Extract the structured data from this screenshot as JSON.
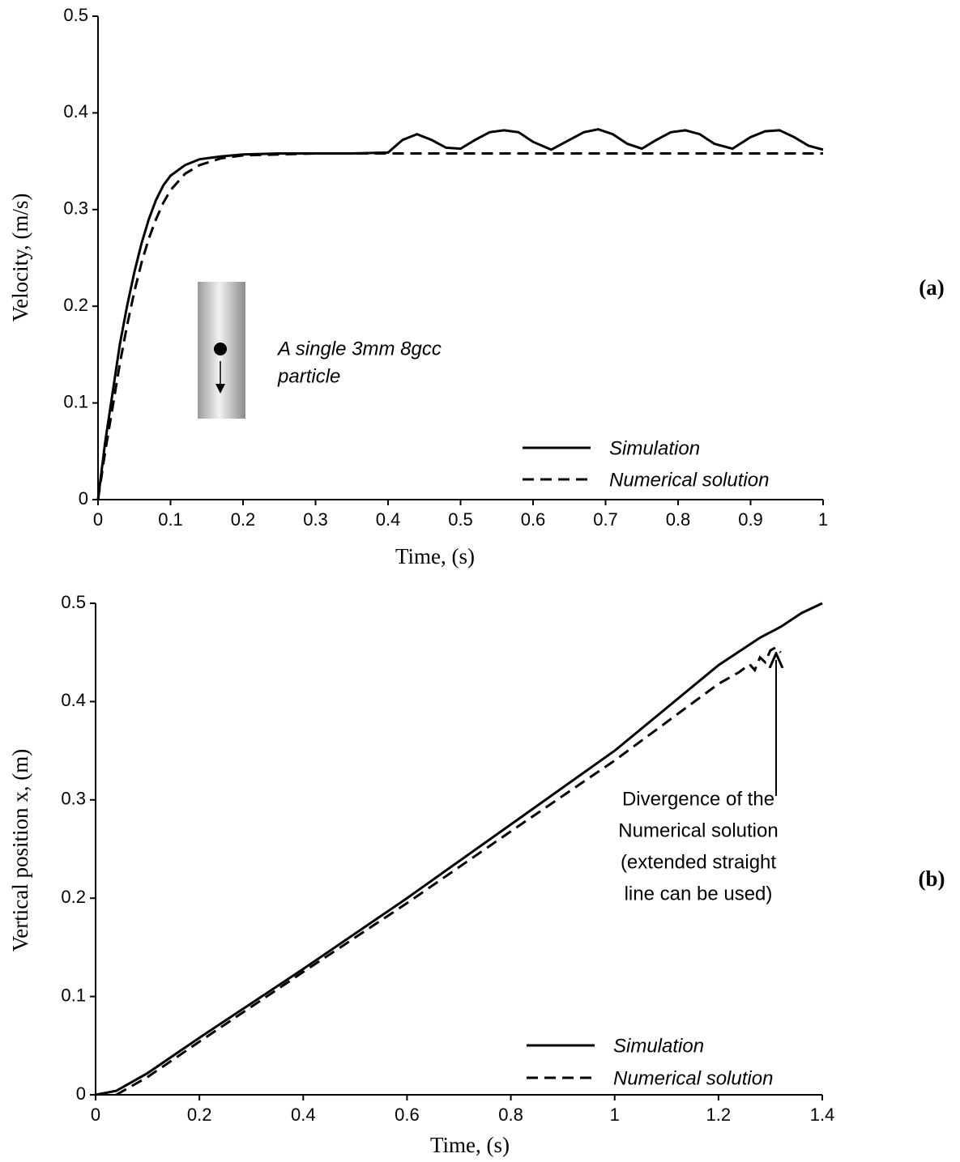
{
  "chart_data": [
    {
      "type": "line",
      "panel_label": "(a)",
      "x_label": "Time, (s)",
      "y_label": "Velocity, (m/s)",
      "xlim": [
        0,
        1
      ],
      "ylim": [
        0,
        0.5
      ],
      "xticks": [
        0,
        0.1,
        0.2,
        0.3,
        0.4,
        0.5,
        0.6,
        0.7,
        0.8,
        0.9,
        1
      ],
      "yticks": [
        0,
        0.1,
        0.2,
        0.3,
        0.4,
        0.5
      ],
      "legend": "lower right",
      "annotation": [
        "A single 3mm 8gcc",
        "particle"
      ],
      "series": [
        {
          "name": "Simulation",
          "color": "#000000",
          "dashed": false,
          "x": [
            0,
            0.01,
            0.02,
            0.03,
            0.04,
            0.05,
            0.06,
            0.07,
            0.08,
            0.09,
            0.1,
            0.12,
            0.14,
            0.17,
            0.2,
            0.25,
            0.3,
            0.35,
            0.4,
            0.42,
            0.44,
            0.46,
            0.48,
            0.5,
            0.52,
            0.54,
            0.56,
            0.58,
            0.6,
            0.625,
            0.65,
            0.67,
            0.69,
            0.71,
            0.73,
            0.75,
            0.77,
            0.79,
            0.81,
            0.83,
            0.85,
            0.875,
            0.9,
            0.92,
            0.94,
            0.96,
            0.98,
            1
          ],
          "values": [
            0,
            0.06,
            0.11,
            0.16,
            0.2,
            0.235,
            0.265,
            0.29,
            0.31,
            0.325,
            0.335,
            0.346,
            0.352,
            0.355,
            0.357,
            0.358,
            0.358,
            0.358,
            0.359,
            0.372,
            0.378,
            0.372,
            0.364,
            0.363,
            0.372,
            0.38,
            0.382,
            0.38,
            0.37,
            0.362,
            0.372,
            0.38,
            0.383,
            0.378,
            0.368,
            0.363,
            0.372,
            0.38,
            0.382,
            0.378,
            0.368,
            0.363,
            0.375,
            0.381,
            0.382,
            0.375,
            0.366,
            0.362
          ]
        },
        {
          "name": "Numerical solution",
          "color": "#000000",
          "dashed": true,
          "x": [
            0,
            0.01,
            0.02,
            0.03,
            0.04,
            0.05,
            0.06,
            0.07,
            0.08,
            0.09,
            0.1,
            0.12,
            0.14,
            0.17,
            0.2,
            0.3,
            1
          ],
          "values": [
            0,
            0.05,
            0.095,
            0.14,
            0.18,
            0.215,
            0.245,
            0.27,
            0.29,
            0.307,
            0.32,
            0.337,
            0.346,
            0.353,
            0.356,
            0.358,
            0.358
          ]
        }
      ]
    },
    {
      "type": "line",
      "panel_label": "(b)",
      "x_label": "Time, (s)",
      "y_label": "Vertical position x, (m)",
      "xlim": [
        0,
        1.4
      ],
      "ylim": [
        0,
        0.5
      ],
      "xticks": [
        0,
        0.2,
        0.4,
        0.6,
        0.8,
        1,
        1.2,
        1.4
      ],
      "yticks": [
        0,
        0.1,
        0.2,
        0.3,
        0.4,
        0.5
      ],
      "legend": "lower right",
      "annotation": [
        "Divergence of the",
        "Numerical solution",
        "(extended straight",
        "line can be used)"
      ],
      "series": [
        {
          "name": "Simulation",
          "color": "#000000",
          "dashed": false,
          "x": [
            0,
            0.04,
            0.1,
            0.2,
            0.4,
            0.6,
            0.8,
            1,
            1.2,
            1.28,
            1.32,
            1.36,
            1.4
          ],
          "values": [
            0,
            0.004,
            0.022,
            0.058,
            0.128,
            0.2,
            0.275,
            0.35,
            0.437,
            0.465,
            0.476,
            0.49,
            0.5
          ]
        },
        {
          "name": "Numerical solution",
          "color": "#000000",
          "dashed": true,
          "x": [
            0.04,
            0.1,
            0.2,
            0.4,
            0.6,
            0.8,
            1,
            1.2,
            1.24,
            1.26,
            1.27,
            1.28,
            1.29,
            1.3,
            1.31,
            1.32
          ],
          "values": [
            0,
            0.018,
            0.054,
            0.125,
            0.195,
            0.268,
            0.34,
            0.418,
            0.43,
            0.438,
            0.432,
            0.445,
            0.44,
            0.452,
            0.455,
            0.45
          ]
        }
      ]
    }
  ]
}
